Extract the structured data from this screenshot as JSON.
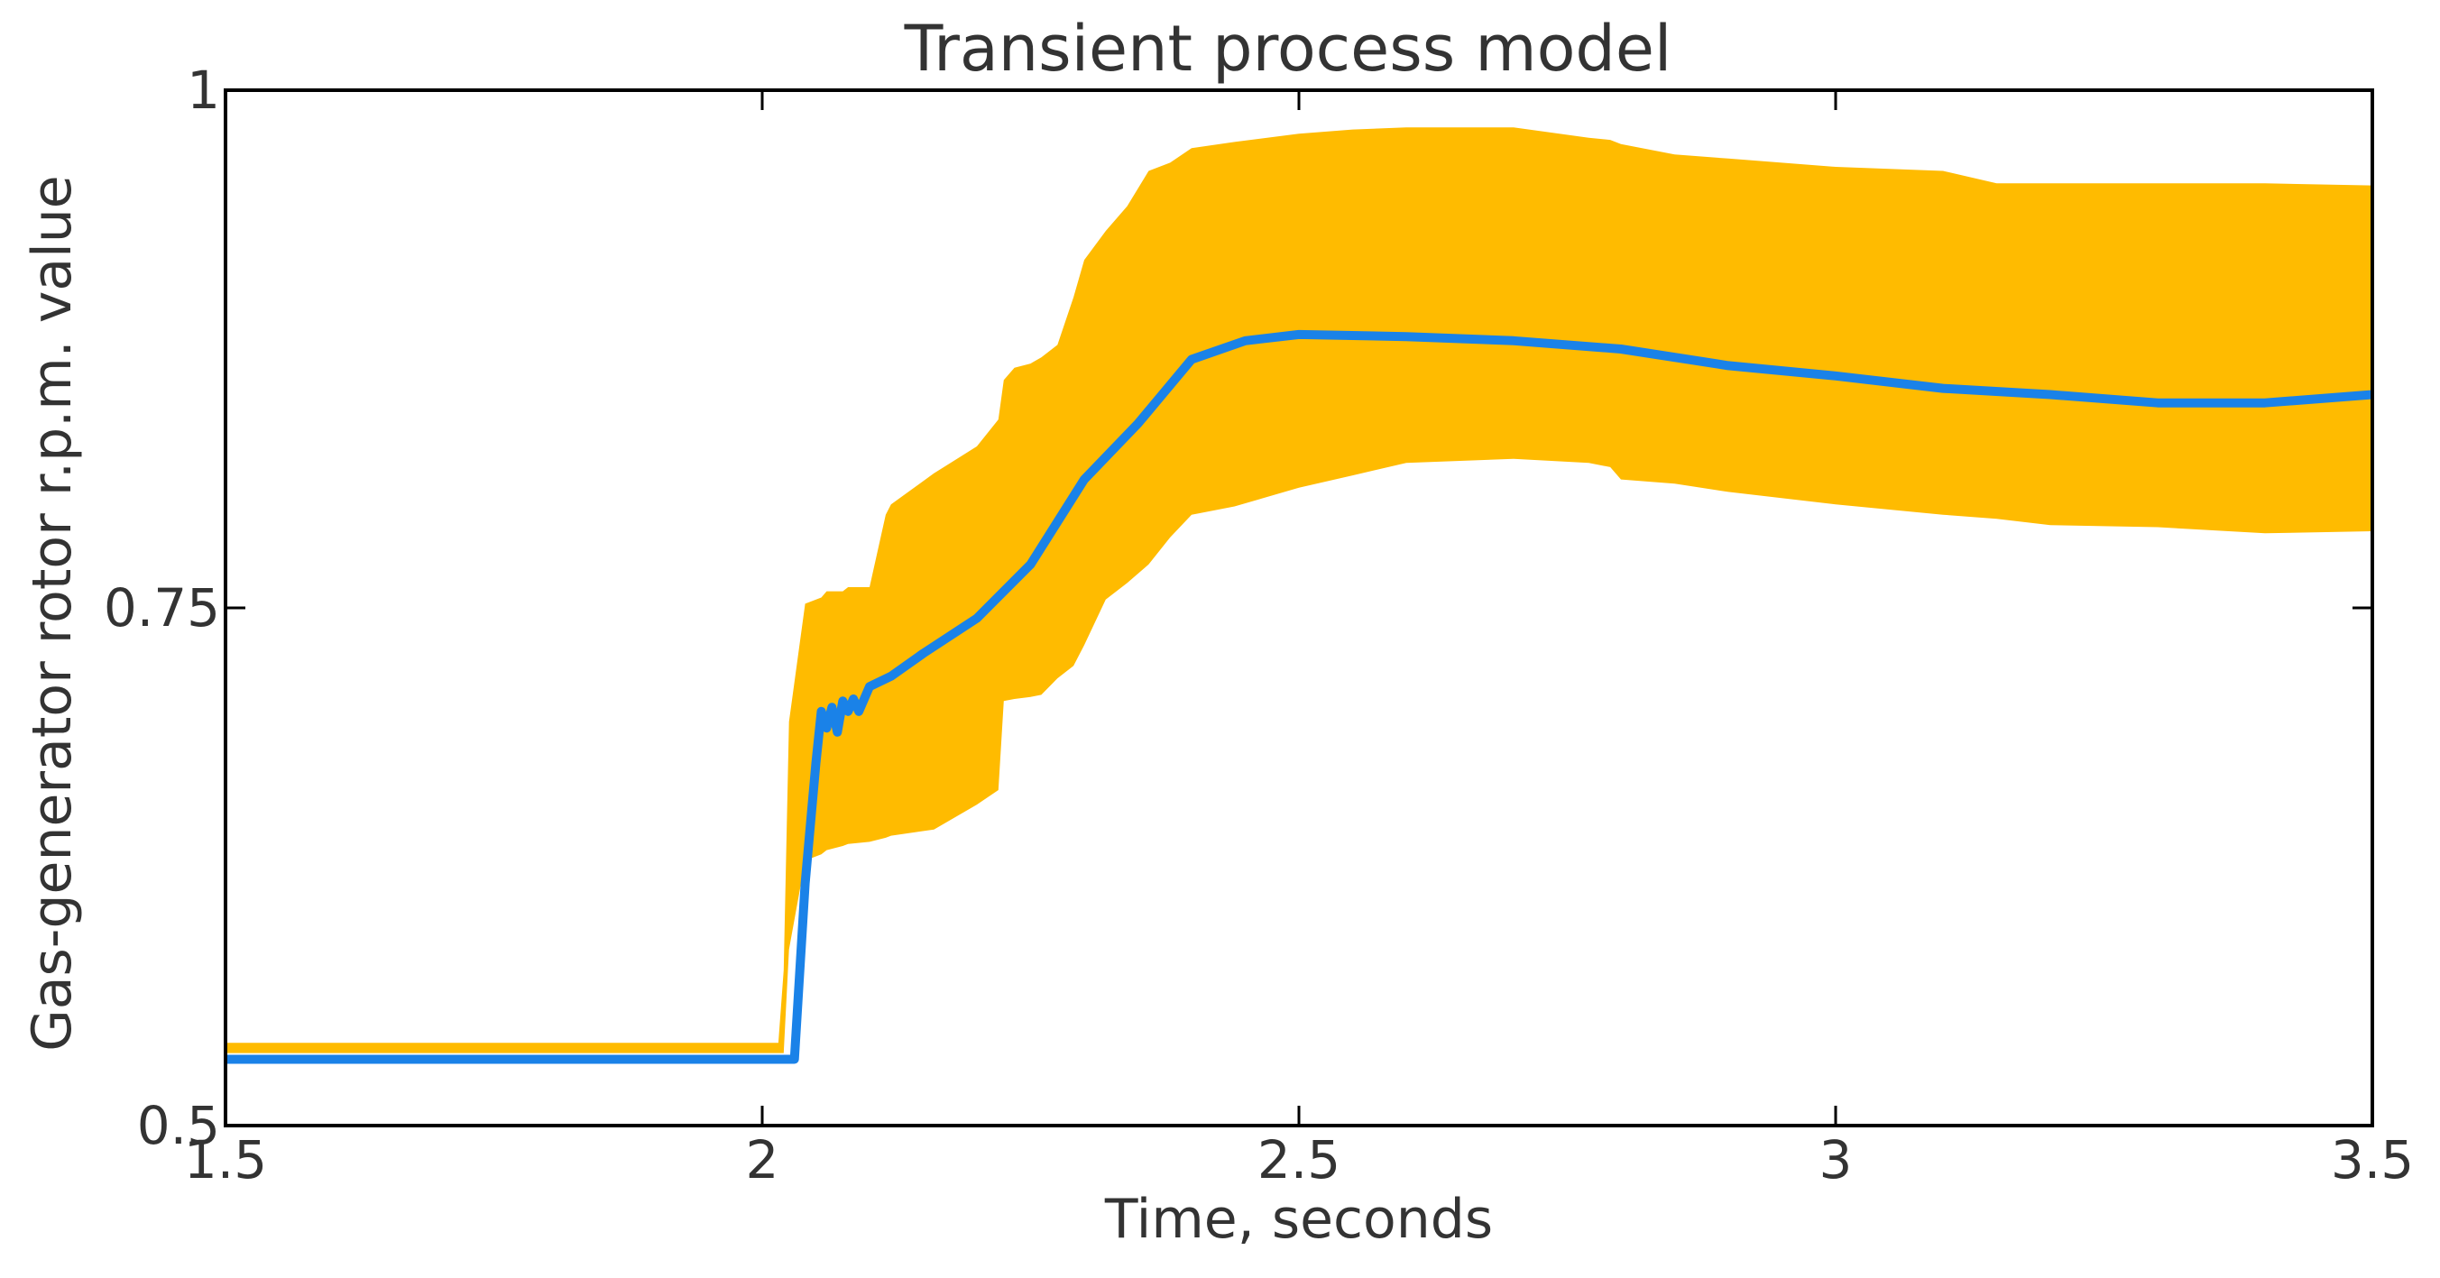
{
  "chart_data": {
    "type": "area",
    "title": "Transient process model",
    "xlabel": "Time, seconds",
    "ylabel": "Gas-generator rotor r.p.m. value",
    "xlim": [
      1.5,
      3.5
    ],
    "ylim": [
      0.5,
      1.0
    ],
    "xticks": [
      1.5,
      2,
      2.5,
      3,
      3.5
    ],
    "xtick_labels": [
      "1.5",
      "2",
      "2.5",
      "3",
      "3.5"
    ],
    "yticks": [
      0.5,
      0.75,
      1.0
    ],
    "ytick_labels": [
      "0.5",
      "0.75",
      "1"
    ],
    "grid": false,
    "legend": "none",
    "colors": {
      "band": "#FFBB00",
      "line": "#1A82E8",
      "axes": "#000000"
    },
    "series": [
      {
        "kind": "band",
        "x": [
          1.5,
          2.015,
          2.02,
          2.025,
          2.04,
          2.055,
          2.06,
          2.075,
          2.08,
          2.1,
          2.115,
          2.12,
          2.16,
          2.2,
          2.22,
          2.225,
          2.235,
          2.25,
          2.26,
          2.275,
          2.29,
          2.3,
          2.32,
          2.34,
          2.36,
          2.38,
          2.4,
          2.44,
          2.5,
          2.55,
          2.6,
          2.7,
          2.77,
          2.79,
          2.8,
          2.85,
          2.9,
          3.0,
          3.1,
          3.15,
          3.2,
          3.3,
          3.4,
          3.5
        ],
        "lower": [
          0.535,
          0.535,
          0.535,
          0.585,
          0.628,
          0.631,
          0.633,
          0.635,
          0.636,
          0.637,
          0.639,
          0.64,
          0.643,
          0.655,
          0.662,
          0.705,
          0.706,
          0.707,
          0.708,
          0.716,
          0.722,
          0.732,
          0.754,
          0.762,
          0.771,
          0.784,
          0.795,
          0.799,
          0.808,
          0.814,
          0.82,
          0.822,
          0.82,
          0.818,
          0.812,
          0.81,
          0.806,
          0.8,
          0.795,
          0.793,
          0.79,
          0.789,
          0.786,
          0.787
        ],
        "upper": [
          0.54,
          0.54,
          0.575,
          0.695,
          0.752,
          0.755,
          0.758,
          0.758,
          0.76,
          0.76,
          0.795,
          0.8,
          0.815,
          0.828,
          0.841,
          0.86,
          0.866,
          0.868,
          0.871,
          0.877,
          0.9,
          0.918,
          0.932,
          0.944,
          0.961,
          0.965,
          0.972,
          0.975,
          0.979,
          0.981,
          0.982,
          0.982,
          0.977,
          0.976,
          0.974,
          0.969,
          0.967,
          0.963,
          0.961,
          0.955,
          0.955,
          0.955,
          0.955,
          0.954
        ]
      },
      {
        "kind": "line",
        "x": [
          1.5,
          2.03,
          2.035,
          2.04,
          2.05,
          2.055,
          2.06,
          2.065,
          2.07,
          2.075,
          2.08,
          2.085,
          2.09,
          2.1,
          2.12,
          2.15,
          2.2,
          2.25,
          2.3,
          2.35,
          2.4,
          2.45,
          2.5,
          2.6,
          2.7,
          2.8,
          2.9,
          3.0,
          3.1,
          3.2,
          3.3,
          3.4,
          3.5
        ],
        "y": [
          0.532,
          0.532,
          0.575,
          0.617,
          0.675,
          0.7,
          0.692,
          0.702,
          0.69,
          0.705,
          0.7,
          0.706,
          0.7,
          0.712,
          0.717,
          0.728,
          0.745,
          0.771,
          0.812,
          0.839,
          0.87,
          0.879,
          0.882,
          0.881,
          0.879,
          0.875,
          0.867,
          0.862,
          0.856,
          0.853,
          0.849,
          0.849,
          0.853
        ]
      }
    ]
  }
}
